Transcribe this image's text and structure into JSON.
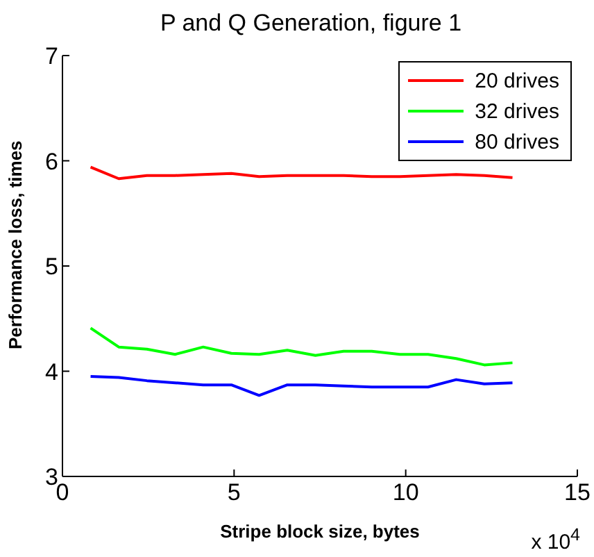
{
  "chart_data": {
    "type": "line",
    "title": "P and Q Generation, figure 1",
    "xlabel": "Stripe block size, bytes",
    "ylabel": "Performance loss, times",
    "annotations": [
      "x 10$^{4}$"
    ],
    "x": [
      0.82,
      1.64,
      2.46,
      3.28,
      4.1,
      4.92,
      5.73,
      6.55,
      7.37,
      8.19,
      9.01,
      9.83,
      10.65,
      11.47,
      12.29,
      13.11
    ],
    "series": [
      {
        "name": "20 drives",
        "color": "#ff0000",
        "values": [
          5.94,
          5.83,
          5.86,
          5.86,
          5.87,
          5.88,
          5.85,
          5.86,
          5.86,
          5.86,
          5.85,
          5.85,
          5.86,
          5.87,
          5.86,
          5.84
        ]
      },
      {
        "name": "32 drives",
        "color": "#00ff00",
        "values": [
          4.41,
          4.23,
          4.21,
          4.16,
          4.23,
          4.17,
          4.16,
          4.2,
          4.15,
          4.19,
          4.19,
          4.16,
          4.16,
          4.12,
          4.06,
          4.08
        ]
      },
      {
        "name": "80 drives",
        "color": "#0000ff",
        "values": [
          3.95,
          3.94,
          3.91,
          3.89,
          3.87,
          3.87,
          3.77,
          3.87,
          3.87,
          3.86,
          3.85,
          3.85,
          3.85,
          3.92,
          3.88,
          3.89
        ]
      }
    ],
    "xlim": [
      0,
      15
    ],
    "xticks": [
      0,
      5,
      10,
      15
    ],
    "ylim": [
      3,
      7
    ],
    "yticks": [
      3,
      4,
      5,
      6,
      7
    ],
    "grid": false,
    "legend": "top right",
    "marker": "none",
    "line_style": "solid"
  }
}
